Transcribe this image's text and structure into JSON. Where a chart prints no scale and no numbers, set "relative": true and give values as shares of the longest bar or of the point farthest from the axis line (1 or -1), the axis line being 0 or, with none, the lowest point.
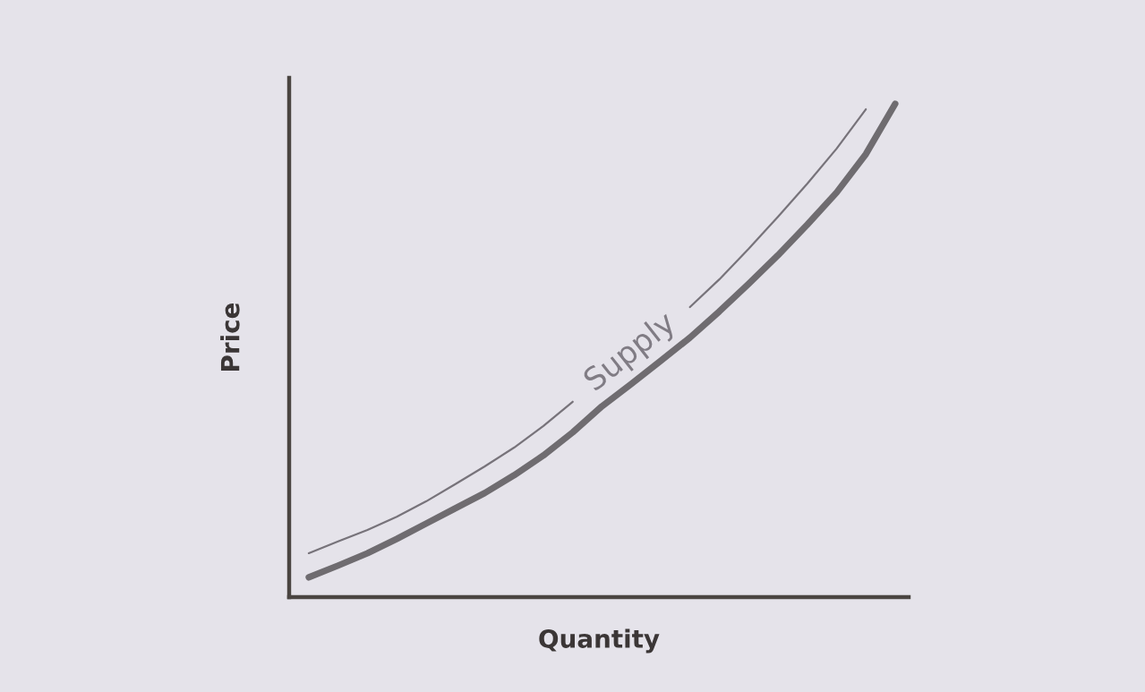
{
  "chart_data": {
    "type": "line",
    "relative": true,
    "xlabel": "Quantity",
    "ylabel": "Price",
    "categories": [
      null,
      null,
      null,
      null,
      null,
      null,
      null,
      null,
      null,
      null,
      null,
      null,
      null,
      null,
      null,
      null,
      null,
      null,
      null,
      null,
      null
    ],
    "series": [
      {
        "name": "Supply",
        "color": "#6f6c70",
        "values": [
          0.04,
          0.064,
          0.089,
          0.118,
          0.149,
          0.18,
          0.211,
          0.247,
          0.287,
          0.334,
          0.387,
          0.432,
          0.479,
          0.526,
          0.579,
          0.635,
          0.693,
          0.755,
          0.82,
          0.898,
          1
        ]
      },
      {
        "color": "#77737a",
        "values": [
          0.089,
          0.113,
          0.136,
          0.163,
          0.194,
          0.229,
          0.265,
          0.303,
          0.347,
          0.396,
          null,
          null,
          null,
          0.588,
          0.644,
          0.706,
          0.771,
          0.838,
          0.909,
          0.989,
          null
        ]
      }
    ]
  }
}
